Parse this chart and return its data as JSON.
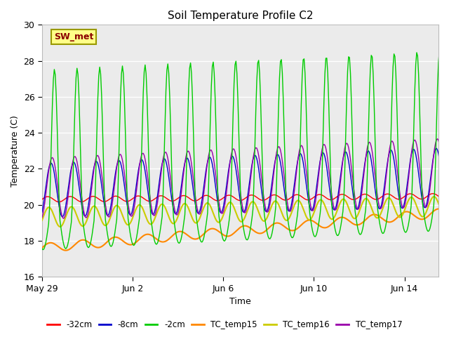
{
  "title": "Soil Temperature Profile C2",
  "xlabel": "Time",
  "ylabel": "Temperature (C)",
  "ylim": [
    16,
    30
  ],
  "xlim_days": 17.5,
  "annotation": "SW_met",
  "bg_inner": "#ebebeb",
  "bg_outer": "#ffffff",
  "grid_color": "#ffffff",
  "series_colors": {
    "-32cm": "#ff0000",
    "-8cm": "#0000cc",
    "-2cm": "#00cc00",
    "TC_temp15": "#ff8800",
    "TC_temp16": "#cccc00",
    "TC_temp17": "#9900aa"
  },
  "x_tick_labels": [
    "May 29",
    "Jun 2",
    "Jun 6",
    "Jun 10",
    "Jun 14"
  ],
  "x_tick_positions": [
    0,
    4,
    8,
    12,
    16
  ],
  "legend_labels": [
    "-32cm",
    "-8cm",
    "-2cm",
    "TC_temp15",
    "TC_temp16",
    "TC_temp17"
  ]
}
